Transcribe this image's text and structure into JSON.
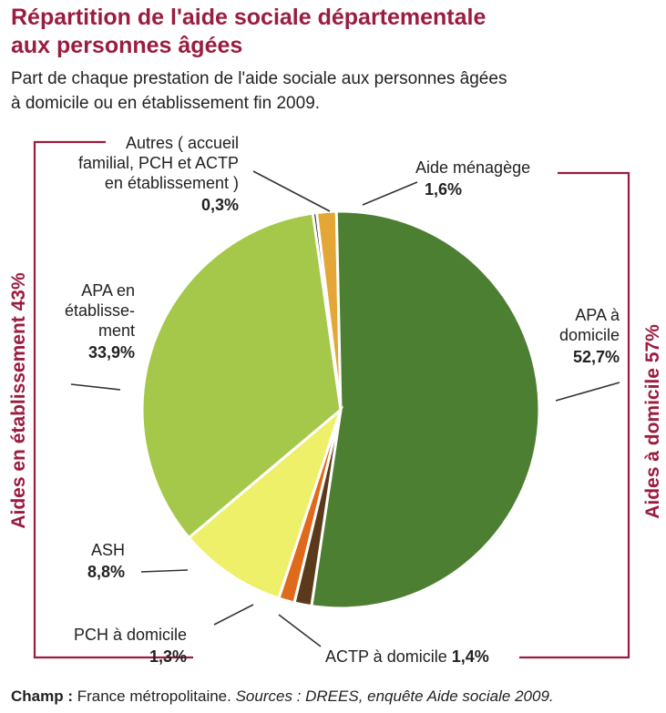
{
  "title_line1": "Répartition de l'aide sociale départementale",
  "title_line2": "aux personnes âgées",
  "subtitle_line1": "Part de chaque prestation de l'aide sociale aux personnes âgées",
  "subtitle_line2": "à domicile ou en établissement fin 2009.",
  "footer": {
    "champ_label": "Champ :",
    "champ_text": " France métropolitaine. ",
    "sources": "Sources : DREES, enquête Aide sociale 2009."
  },
  "colors": {
    "accent": "#9b1c3f",
    "aide_menagere": "#e3a637",
    "apa_domicile": "#4d7f32",
    "actp_domicile": "#5a3a1a",
    "pch_domicile": "#e06a1c",
    "ash": "#eef06a",
    "apa_etablissement": "#a5c84a",
    "autres": "#1e1e1e"
  },
  "chart_data": {
    "type": "pie",
    "slices": [
      {
        "key": "aide_menagere",
        "lines": [
          "Aide ménagège"
        ],
        "value_label": "1,6%",
        "value": 1.6
      },
      {
        "key": "apa_domicile",
        "lines": [
          "APA à",
          "domicile"
        ],
        "value_label": "52,7%",
        "value": 52.7
      },
      {
        "key": "actp_domicile",
        "lines": [
          "ACTP à domicile"
        ],
        "value_label": "1,4%",
        "value": 1.4
      },
      {
        "key": "pch_domicile",
        "lines": [
          "PCH à domicile"
        ],
        "value_label": "1,3%",
        "value": 1.3
      },
      {
        "key": "ash",
        "lines": [
          "ASH"
        ],
        "value_label": "8,8%",
        "value": 8.8
      },
      {
        "key": "apa_etablissement",
        "lines": [
          "APA en",
          "établisse-",
          "ment"
        ],
        "value_label": "33,9%",
        "value": 33.9
      },
      {
        "key": "autres",
        "lines": [
          "Autres ( accueil",
          "familial, PCH et ACTP",
          "en établissement )"
        ],
        "value_label": "0,3%",
        "value": 0.3
      }
    ],
    "groups": [
      {
        "key": "etablissement",
        "label": "Aides en établissement 43%",
        "value": 43
      },
      {
        "key": "domicile",
        "label": "Aides à domicile 57%",
        "value": 57
      }
    ]
  }
}
